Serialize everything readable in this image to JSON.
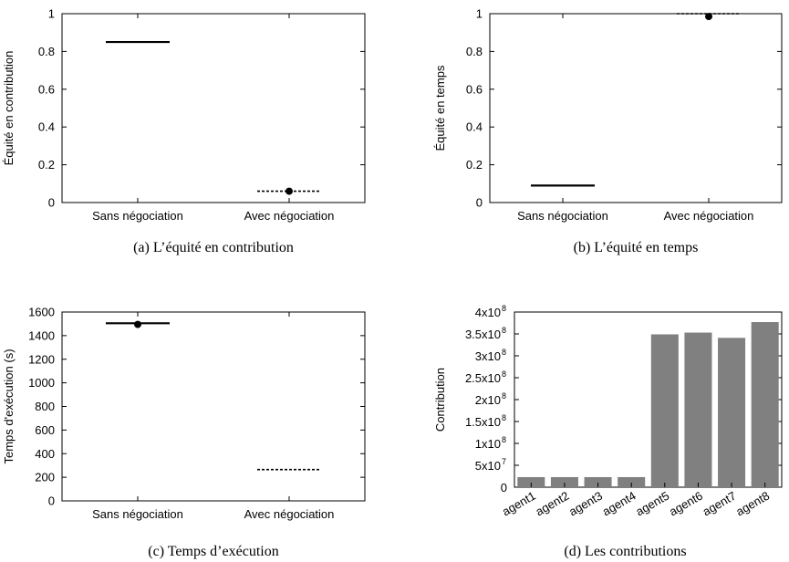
{
  "chart_data": [
    {
      "type": "box",
      "caption": "(a) L’équité en contribution",
      "ylabel": "Équité en contribution",
      "ylim": [
        0,
        1
      ],
      "yticks": [
        "0",
        "0.2",
        "0.4",
        "0.6",
        "0.8",
        "1"
      ],
      "categories": [
        "Sans négociation",
        "Avec négociation"
      ],
      "values": [
        0.85,
        0.06
      ],
      "markers": [
        null,
        0.06
      ],
      "dashed": [
        false,
        true
      ]
    },
    {
      "type": "box",
      "caption": "(b) L’équité en temps",
      "ylabel": "Équité en temps",
      "ylim": [
        0,
        1
      ],
      "yticks": [
        "0",
        "0.2",
        "0.4",
        "0.6",
        "0.8",
        "1"
      ],
      "categories": [
        "Sans négociation",
        "Avec négociation"
      ],
      "values": [
        0.09,
        1.0
      ],
      "markers": [
        null,
        0.985
      ],
      "dashed": [
        false,
        true
      ]
    },
    {
      "type": "box",
      "caption": "(c) Temps d’exécution",
      "ylabel": "Temps d'exécution (s)",
      "ylim": [
        0,
        1600
      ],
      "yticks": [
        "0",
        "200",
        "400",
        "600",
        "800",
        "1000",
        "1200",
        "1400",
        "1600"
      ],
      "categories": [
        "Sans négociation",
        "Avec négociation"
      ],
      "values": [
        1505,
        265
      ],
      "markers": [
        1495,
        null
      ],
      "dashed": [
        false,
        true
      ]
    },
    {
      "type": "bar",
      "caption": "(d) Les contributions",
      "ylabel": "Contribution",
      "ylim": [
        0,
        400000000
      ],
      "ytick_mantissas": [
        "0",
        "5x10",
        "1x10",
        "1.5x10",
        "2x10",
        "2.5x10",
        "3x10",
        "3.5x10",
        "4x10"
      ],
      "ytick_exponents": [
        "",
        "7",
        "8",
        "8",
        "8",
        "8",
        "8",
        "8",
        "8"
      ],
      "categories": [
        "agent1",
        "agent2",
        "agent3",
        "agent4",
        "agent5",
        "agent6",
        "agent7",
        "agent8"
      ],
      "values": [
        23000000,
        23000000,
        23000000,
        23000000,
        349000000,
        353000000,
        341000000,
        377000000
      ],
      "bar_color": "#808080"
    }
  ]
}
